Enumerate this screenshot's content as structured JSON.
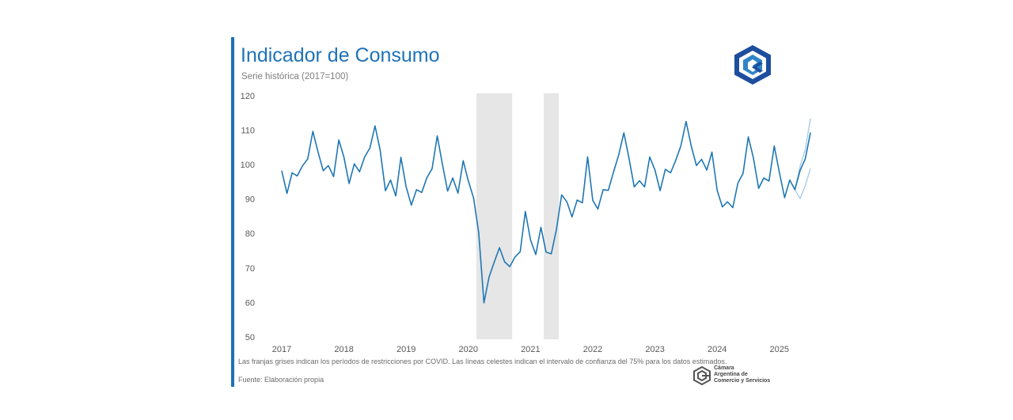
{
  "header": {
    "title": "Indicador de Consumo",
    "subtitle": "Serie histórica (2017=100)"
  },
  "footer": {
    "note": "Las franjas grises indican los períodos de restricciones por COVID. Las líneas celestes indican el intervalo de confianza del 75% para los datos estimados.",
    "source": "Fuente: Elaboración propia",
    "org_name_lines": [
      "Cámara",
      "Argentina de",
      "Comercio y Servicios"
    ]
  },
  "colors": {
    "accent": "#1a72b8",
    "line": "#1f77b4",
    "ci_band": "#a9cbe6",
    "shading": "#e6e6e6"
  },
  "icons": {
    "top_logo": "cac-logo-icon",
    "bottom_logo": "cac-mark-icon"
  },
  "chart_data": {
    "type": "line",
    "title": "Indicador de Consumo",
    "subtitle": "Serie histórica (2017=100)",
    "xlabel": "",
    "ylabel": "",
    "ylim": [
      50,
      120
    ],
    "yticks": [
      50,
      60,
      70,
      80,
      90,
      100,
      110,
      120
    ],
    "xticks": [
      "2017",
      "2018",
      "2019",
      "2020",
      "2021",
      "2022",
      "2023",
      "2024",
      "2025"
    ],
    "xlim": [
      "2017-01",
      "2025-12"
    ],
    "grid": false,
    "legend": "none",
    "shaded_periods": [
      {
        "from": "2020-03",
        "to": "2020-09"
      },
      {
        "from": "2021-04",
        "to": "2021-06"
      }
    ],
    "series": [
      {
        "start": "2017-01",
        "values": [
          98.2,
          91.6,
          97.6,
          96.7,
          99.6,
          101.6,
          109.6,
          103.6,
          98.2,
          99.7,
          96.5,
          107.1,
          102.1,
          94.5,
          100.2,
          97.9,
          102.2,
          104.8,
          111.2,
          104.1,
          92.4,
          95.5,
          90.9,
          102.1,
          93.5,
          88.2,
          92.7,
          91.9,
          96.2,
          98.8,
          108.3,
          100.1,
          92.3,
          96.1,
          91.7,
          101.1,
          95.2,
          90.3,
          80.2,
          59.9,
          67.4,
          71.7,
          75.9,
          71.8,
          70.4,
          73.2,
          74.7,
          86.4,
          78.1,
          73.9,
          81.8,
          74.6,
          74.1,
          81.2,
          91.2,
          89.2,
          84.8,
          89.7,
          88.9,
          102.2,
          89.6,
          87.1,
          92.7,
          92.5,
          97.8,
          102.8,
          109.2,
          101.8,
          93.5,
          95.3,
          93.5,
          102.2,
          98.4,
          92.4,
          98.6,
          97.6,
          101.2,
          105.4,
          112.5,
          105.4,
          99.7,
          101.5,
          98.4,
          103.6,
          92.5,
          87.7,
          89.2,
          87.5,
          94.6,
          97.4,
          108.0,
          101.9,
          93.1,
          96.1,
          95.2,
          105.4,
          97.7,
          90.4,
          95.5,
          92.7,
          98.3,
          101.6,
          109.3
        ]
      },
      {
        "name": "upper",
        "start": "2025-04",
        "values": [
          92.7,
          99.5,
          104.3,
          113.4
        ]
      },
      {
        "name": "lower",
        "start": "2025-04",
        "values": [
          92.7,
          90.1,
          93.9,
          98.8
        ]
      }
    ]
  }
}
